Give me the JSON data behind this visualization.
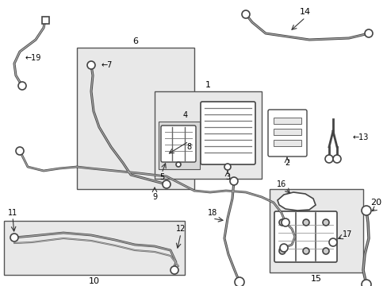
{
  "background_color": "#ffffff",
  "box_fill": "#e8e8e8",
  "line_color": "#444444",
  "text_color": "#000000",
  "fig_w": 4.89,
  "fig_h": 3.6,
  "dpi": 100
}
